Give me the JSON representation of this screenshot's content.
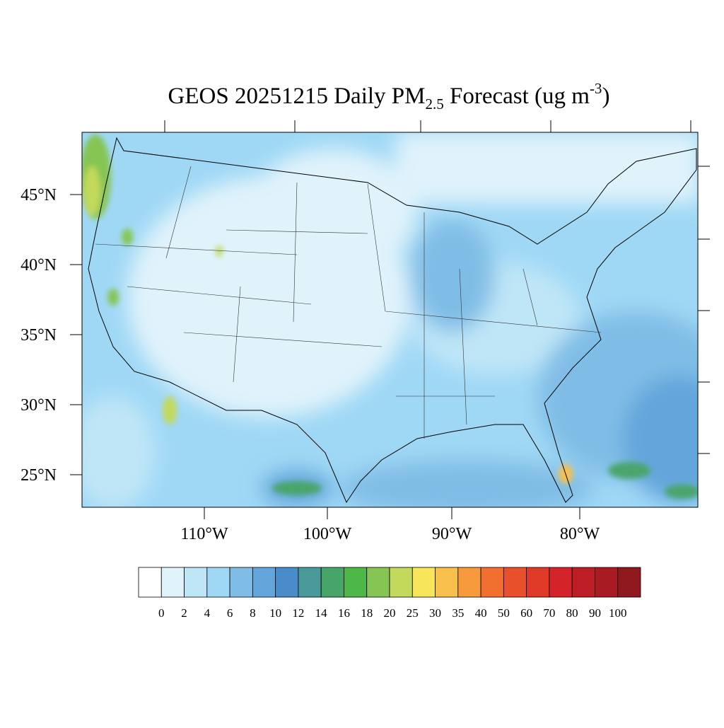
{
  "title": {
    "main": "GEOS 20251215 Daily PM",
    "sub": "2.5",
    "after": " Forecast (ug m",
    "sup": "-3",
    "close": ")"
  },
  "lat_labels": [
    "45°N",
    "40°N",
    "35°N",
    "30°N",
    "25°N"
  ],
  "lon_labels": [
    "110°W",
    "100°W",
    "90°W",
    "80°W"
  ],
  "colorbar": {
    "levels": [
      0,
      2,
      4,
      6,
      8,
      10,
      12,
      14,
      16,
      18,
      20,
      25,
      30,
      35,
      40,
      50,
      60,
      70,
      80,
      90,
      100
    ],
    "colors": [
      "#ffffff",
      "#e0f3fb",
      "#bfe6f7",
      "#9fd8f5",
      "#80bde6",
      "#64a6db",
      "#4a8bc9",
      "#4a9a9a",
      "#48a56a",
      "#4db848",
      "#86c553",
      "#c3d95b",
      "#f7e65a",
      "#f7c04d",
      "#f69a3d",
      "#f2702f",
      "#e8502b",
      "#de3a27",
      "#d42429",
      "#bd1d25",
      "#a81b22",
      "#8f181c"
    ]
  }
}
